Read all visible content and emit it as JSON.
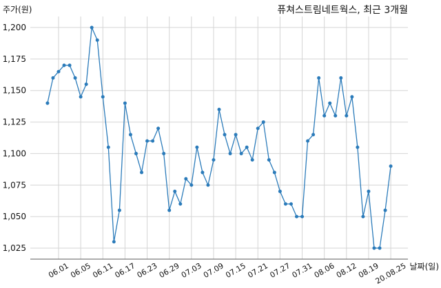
{
  "chart_data": {
    "type": "line",
    "title": "퓨쳐스트림네트웍스, 최근 3개월",
    "xlabel": "날짜(일)",
    "ylabel": "주가(원)",
    "categories": [
      "",
      "",
      "06.01",
      "",
      "",
      "",
      "06.05",
      "",
      "",
      "",
      "06.11",
      "",
      "",
      "",
      "06.17",
      "",
      "",
      "",
      "06.23",
      "",
      "",
      "",
      "06.29",
      "",
      "",
      "",
      "07.03",
      "",
      "",
      "",
      "07.09",
      "",
      "",
      "",
      "07.15",
      "",
      "",
      "",
      "07.21",
      "",
      "",
      "",
      "07.27",
      "",
      "",
      "",
      "07.31",
      "",
      "",
      "",
      "08.06",
      "",
      "",
      "",
      "08.12",
      "",
      "",
      "",
      "08.19",
      "",
      "",
      "",
      "20.08.25"
    ],
    "series": [
      {
        "values": [
          1140,
          1160,
          1165,
          1170,
          1170,
          1160,
          1145,
          1155,
          1200,
          1190,
          1145,
          1105,
          1030,
          1055,
          1140,
          1115,
          1100,
          1085,
          1110,
          1110,
          1120,
          1100,
          1055,
          1070,
          1060,
          1080,
          1075,
          1105,
          1085,
          1075,
          1095,
          1135,
          1115,
          1100,
          1115,
          1100,
          1105,
          1095,
          1120,
          1125,
          1095,
          1085,
          1070,
          1060,
          1060,
          1050,
          1050,
          1110,
          1115,
          1160,
          1130,
          1140,
          1130,
          1160,
          1130,
          1145,
          1105,
          1050,
          1070,
          1025,
          1025,
          1055,
          1090
        ]
      }
    ],
    "yticks": [
      1025,
      1050,
      1075,
      1100,
      1125,
      1150,
      1175,
      1200
    ],
    "ytick_labels": [
      "1,025",
      "1,050",
      "1,075",
      "1,100",
      "1,125",
      "1,150",
      "1,175",
      "1,200"
    ],
    "ylim": [
      1016.25,
      1208.75
    ],
    "grid": true,
    "line_color": "#2b7bba"
  }
}
